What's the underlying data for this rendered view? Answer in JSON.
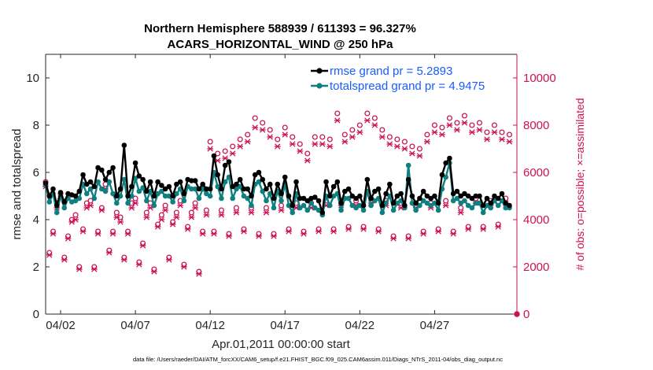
{
  "chart_data": {
    "type": "line",
    "title": "Northern Hemisphere 588939 / 611393 = 96.327%",
    "subtitle": "ACARS_HORIZONTAL_WIND @ 250 hPa",
    "xlabel": "Apr.01,2011 00:00:00 start",
    "ylabel_left": "rmse and totalspread",
    "ylabel_right": "# of obs: o=possible; ×=assimilated",
    "xlim": [
      0,
      31.5
    ],
    "ylim_left": [
      0,
      11
    ],
    "ylim_right": [
      0,
      11000
    ],
    "x_ticks": [
      {
        "value": 1,
        "label": "04/02"
      },
      {
        "value": 6,
        "label": "04/07"
      },
      {
        "value": 11,
        "label": "04/12"
      },
      {
        "value": 16,
        "label": "04/17"
      },
      {
        "value": 21,
        "label": "04/22"
      },
      {
        "value": 26,
        "label": "04/27"
      }
    ],
    "y_ticks_left": [
      "0",
      "2",
      "4",
      "6",
      "8",
      "10"
    ],
    "y_ticks_left_values": [
      0,
      2,
      4,
      6,
      8,
      10
    ],
    "y_ticks_right": [
      "0",
      "2000",
      "4000",
      "6000",
      "8000",
      "10000"
    ],
    "y_ticks_right_values": [
      0,
      2000,
      4000,
      6000,
      8000,
      10000
    ],
    "legend": {
      "placement": "top-right",
      "entries": [
        {
          "label": "rmse grand pr = 5.2893",
          "series": "rmse"
        },
        {
          "label": "totalspread grand pr = 4.9475",
          "series": "totalspread"
        }
      ]
    },
    "x": [
      0.0,
      0.25,
      0.5,
      0.75,
      1.0,
      1.25,
      1.5,
      1.75,
      2.0,
      2.25,
      2.5,
      2.75,
      3.0,
      3.25,
      3.5,
      3.75,
      4.0,
      4.25,
      4.5,
      4.75,
      5.0,
      5.25,
      5.5,
      5.75,
      6.0,
      6.25,
      6.5,
      6.75,
      7.0,
      7.25,
      7.5,
      7.75,
      8.0,
      8.25,
      8.5,
      8.75,
      9.0,
      9.25,
      9.5,
      9.75,
      10.0,
      10.25,
      10.5,
      10.75,
      11.0,
      11.25,
      11.5,
      11.75,
      12.0,
      12.25,
      12.5,
      12.75,
      13.0,
      13.25,
      13.5,
      13.75,
      14.0,
      14.25,
      14.5,
      14.75,
      15.0,
      15.25,
      15.5,
      15.75,
      16.0,
      16.25,
      16.5,
      16.75,
      17.0,
      17.25,
      17.5,
      17.75,
      18.0,
      18.25,
      18.5,
      18.75,
      19.0,
      19.25,
      19.5,
      19.75,
      20.0,
      20.25,
      20.5,
      20.75,
      21.0,
      21.25,
      21.5,
      21.75,
      22.0,
      22.25,
      22.5,
      22.75,
      23.0,
      23.25,
      23.5,
      23.75,
      24.0,
      24.25,
      24.5,
      24.75,
      25.0,
      25.25,
      25.5,
      25.75,
      26.0,
      26.25,
      26.5,
      26.75,
      27.0,
      27.25,
      27.5,
      27.75,
      28.0,
      28.25,
      28.5,
      28.75,
      29.0,
      29.25,
      29.5,
      29.75,
      30.0,
      30.25,
      30.5,
      30.75,
      31.0
    ],
    "series": [
      {
        "name": "rmse",
        "color": "#000000",
        "values": [
          5.55,
          5.0,
          5.3,
          4.6,
          5.15,
          4.75,
          5.1,
          5.05,
          5.0,
          5.2,
          5.9,
          5.5,
          5.6,
          5.4,
          6.2,
          6.1,
          5.7,
          6.0,
          6.2,
          5.0,
          5.3,
          7.15,
          5.0,
          5.4,
          6.4,
          5.85,
          5.7,
          5.2,
          5.6,
          5.0,
          5.6,
          5.45,
          5.3,
          5.4,
          5.0,
          5.5,
          5.6,
          5.1,
          5.7,
          5.65,
          5.65,
          5.3,
          5.5,
          5.3,
          5.3,
          6.7,
          5.9,
          5.3,
          6.3,
          6.45,
          5.4,
          5.5,
          5.7,
          5.3,
          5.3,
          5.0,
          5.9,
          6.0,
          5.7,
          5.3,
          5.5,
          4.9,
          5.5,
          5.1,
          5.8,
          5.0,
          4.6,
          5.6,
          4.9,
          4.9,
          4.8,
          4.9,
          4.95,
          4.8,
          4.3,
          5.6,
          5.0,
          5.4,
          5.6,
          4.7,
          5.2,
          5.3,
          5.0,
          4.9,
          5.0,
          4.6,
          5.7,
          4.9,
          5.2,
          5.3,
          4.6,
          5.1,
          5.5,
          4.7,
          5.0,
          5.1,
          4.6,
          5.7,
          5.0,
          4.7,
          4.9,
          5.2,
          5.0,
          4.9,
          5.0,
          4.7,
          5.9,
          6.4,
          6.6,
          5.1,
          5.2,
          5.0,
          5.1,
          5.0,
          4.9,
          5.0,
          5.0,
          4.6,
          4.9,
          4.7,
          5.0,
          4.9,
          5.1,
          4.7,
          4.6
        ]
      },
      {
        "name": "totalspread",
        "color": "#0f7f7f",
        "values": [
          5.45,
          4.75,
          5.1,
          4.3,
          5.0,
          4.5,
          4.9,
          4.75,
          4.8,
          4.9,
          5.5,
          5.1,
          5.3,
          4.9,
          5.6,
          5.3,
          5.2,
          5.6,
          5.1,
          4.7,
          5.0,
          5.7,
          4.7,
          5.0,
          5.75,
          5.2,
          5.35,
          4.8,
          5.2,
          4.6,
          5.1,
          5.2,
          5.0,
          5.0,
          4.75,
          5.1,
          5.3,
          4.8,
          5.4,
          5.3,
          5.3,
          4.9,
          5.3,
          5.1,
          5.0,
          6.0,
          5.4,
          4.9,
          5.6,
          5.8,
          4.9,
          5.3,
          5.4,
          5.0,
          4.9,
          4.6,
          5.5,
          5.6,
          5.2,
          4.8,
          5.1,
          4.5,
          5.2,
          4.8,
          5.5,
          4.6,
          4.3,
          5.1,
          4.5,
          4.6,
          4.4,
          4.7,
          4.5,
          4.4,
          4.2,
          5.0,
          4.6,
          5.0,
          5.1,
          4.4,
          4.9,
          4.9,
          4.6,
          4.5,
          4.6,
          4.4,
          5.2,
          4.6,
          4.8,
          4.9,
          4.3,
          4.7,
          5.0,
          4.4,
          4.7,
          4.8,
          4.5,
          6.3,
          4.7,
          4.4,
          4.6,
          4.8,
          4.7,
          4.6,
          4.7,
          4.4,
          5.3,
          5.8,
          6.4,
          4.8,
          4.9,
          4.7,
          4.8,
          4.6,
          4.5,
          4.7,
          4.7,
          4.3,
          4.6,
          4.5,
          4.8,
          4.6,
          4.8,
          4.5,
          4.5
        ]
      },
      {
        "name": "obs_possible",
        "color": "#cc1256",
        "axis": "right",
        "values": [
          5600,
          2600,
          3500,
          4700,
          5100,
          2400,
          3300,
          4000,
          4200,
          2000,
          3600,
          4700,
          4800,
          2000,
          3500,
          4500,
          5500,
          2700,
          3500,
          4300,
          4100,
          2400,
          3500,
          4700,
          4900,
          2200,
          3000,
          4300,
          4700,
          1900,
          3800,
          4200,
          4600,
          2400,
          3900,
          4300,
          4800,
          2100,
          3700,
          4300,
          4700,
          1800,
          3500,
          4400,
          7300,
          3500,
          6800,
          4400,
          6900,
          3400,
          7100,
          4500,
          7400,
          3600,
          7600,
          4500,
          8300,
          3400,
          8100,
          4500,
          7800,
          3400,
          7400,
          4600,
          7900,
          3600,
          7500,
          4700,
          7200,
          3500,
          6800,
          4700,
          7500,
          3600,
          7500,
          4800,
          7400,
          3600,
          8500,
          4800,
          7600,
          3700,
          7800,
          4800,
          8000,
          3700,
          8500,
          4900,
          8300,
          3600,
          7800,
          4800,
          7500,
          3300,
          7400,
          4700,
          7300,
          3300,
          7100,
          4700,
          7000,
          3500,
          7600,
          4700,
          8000,
          3600,
          7900,
          4800,
          8300,
          3500,
          8100,
          4500,
          8400,
          3700,
          8000,
          4900,
          8100,
          3700,
          7700,
          4800,
          8000,
          3800,
          7700,
          4900,
          7600
        ]
      },
      {
        "name": "obs_assimilated",
        "color": "#cc1256",
        "axis": "right",
        "values": [
          5400,
          2500,
          3400,
          4500,
          4900,
          2300,
          3200,
          3900,
          4000,
          1900,
          3500,
          4500,
          4600,
          1900,
          3400,
          4400,
          5300,
          2600,
          3400,
          4100,
          3900,
          2300,
          3400,
          4500,
          4700,
          2100,
          2900,
          4100,
          4500,
          1800,
          3700,
          4000,
          4400,
          2300,
          3800,
          4100,
          4600,
          2000,
          3600,
          4100,
          4500,
          1700,
          3400,
          4200,
          7000,
          3400,
          6500,
          4200,
          6600,
          3300,
          6800,
          4300,
          7100,
          3500,
          7300,
          4300,
          7900,
          3300,
          7800,
          4300,
          7500,
          3300,
          7100,
          4400,
          7600,
          3500,
          7200,
          4500,
          6900,
          3400,
          6500,
          4500,
          7200,
          3500,
          7200,
          4600,
          7100,
          3500,
          8200,
          4600,
          7300,
          3600,
          7500,
          4600,
          7700,
          3600,
          8200,
          4700,
          8000,
          3500,
          7500,
          4600,
          7200,
          3200,
          7100,
          4500,
          7000,
          3200,
          6800,
          4500,
          6700,
          3400,
          7300,
          4500,
          7700,
          3500,
          7600,
          4600,
          8000,
          3400,
          7800,
          4300,
          8100,
          3600,
          7700,
          4700,
          7800,
          3600,
          7400,
          4600,
          7700,
          3700,
          7400,
          4700,
          7300
        ]
      }
    ],
    "zero_point_marker": {
      "x": 31.5,
      "value": 0
    }
  },
  "footer": "data file: /Users/raeder/DAI/ATM_forcXX/CAM6_setup/f.e21.FHIST_BGC.f09_025.CAM6assim.011/Diags_NTrS_2011-04/obs_diag_output.nc",
  "colors": {
    "rmse": "#000000",
    "totalspread": "#0f7f7f",
    "obs": "#cc1256",
    "legend_text": "#1a5cff",
    "axis": "#262626"
  }
}
